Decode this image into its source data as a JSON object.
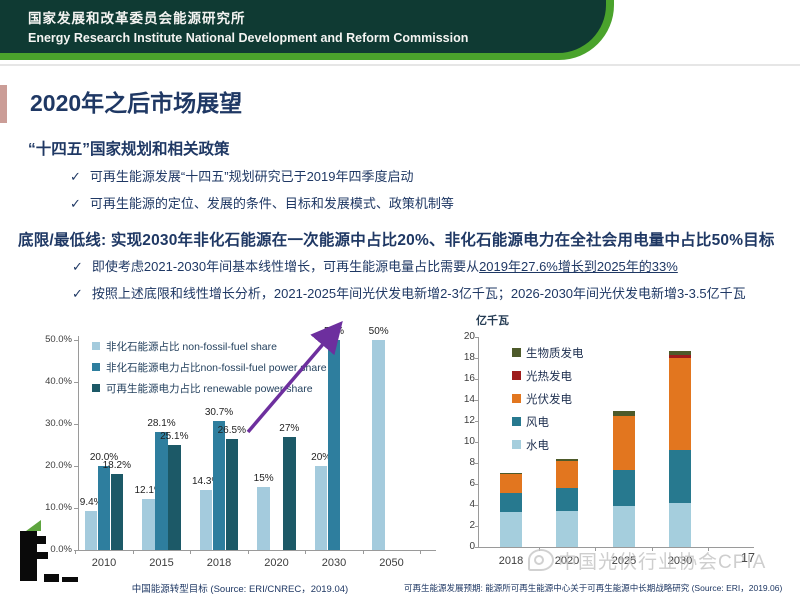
{
  "header": {
    "org_cn": "国家发展和改革委员会能源研究所",
    "org_en": "Energy Research Institute National Development and Reform Commission"
  },
  "slide": {
    "title": "2020年之后市场展望",
    "check_glyph": "✓",
    "section_policy": {
      "heading": "“十四五”国家规划和相关政策",
      "bullets": [
        "可再生能源发展“十四五”规划研究已于2019年四季度启动",
        "可再生能源的定位、发展的条件、目标和发展模式、政策机制等"
      ]
    },
    "section_target": {
      "heading": "底限/最低线: 实现2030年非化石能源在一次能源中占比20%、非化石能源电力在全社会用电量中占比50%目标",
      "bullet_growth_prefix": "即使考虑2021-2030年间基本线性增长，可再生能源电量占比需要从",
      "bullet_growth_underlined": "2019年27.6%增长到2025年的33%",
      "bullet_pv": "按照上述底限和线性增长分析，2021-2025年间光伏发电新增2-3亿千瓦；2026-2030年间光伏发电新增3-3.5亿千瓦"
    }
  },
  "chart_data": [
    {
      "type": "bar",
      "caption": "中国能源转型目标 (Source: ERI/CNREC，2019.04)",
      "categories": [
        "2010",
        "2015",
        "2018",
        "2020",
        "2030",
        "2050"
      ],
      "series": [
        {
          "name": "非化石能源占比 non-fossil-fuel share",
          "color": "#a4cbdd",
          "values": [
            9.4,
            12.1,
            14.3,
            15,
            20,
            50
          ],
          "labels": [
            "9.4%",
            "12.1%",
            "14.3%",
            "15%",
            "20%",
            "50%"
          ]
        },
        {
          "name": "非化石能源电力占比non-fossil-fuel power share",
          "color": "#2e7e9e",
          "values": [
            20.0,
            28.1,
            30.7,
            null,
            50,
            null
          ],
          "labels": [
            "20.0%",
            "28.1%",
            "30.7%",
            null,
            "50%",
            null
          ]
        },
        {
          "name": "可再生能源电力占比 renewable power share",
          "color": "#1c5967",
          "values": [
            18.2,
            25.1,
            26.5,
            27,
            null,
            null
          ],
          "labels": [
            "18.2%",
            "25.1%",
            "26.5%",
            "27%",
            null,
            null
          ]
        }
      ],
      "ylim": [
        0,
        50
      ],
      "yticks": [
        "0.0%",
        "10.0%",
        "20.0%",
        "30.0%",
        "40.0%",
        "50.0%"
      ],
      "legend_position": "top-left-inside",
      "grid": false,
      "annotation": "purple upward trend arrow pointing to 50% bar in 2030"
    },
    {
      "type": "bar-stacked",
      "unit_label": "亿千瓦",
      "caption": "可再生能源发展预期: 能源所可再生能源中心关于可再生能源中长期战略研究 (Source: ERI，2019.06)",
      "categories": [
        "2018",
        "2020",
        "2025",
        "2030"
      ],
      "series": [
        {
          "name": "水电",
          "color": "#a5cedd",
          "values": [
            3.3,
            3.4,
            3.9,
            4.2
          ]
        },
        {
          "name": "风电",
          "color": "#27798f",
          "values": [
            1.8,
            2.2,
            3.4,
            5.0
          ]
        },
        {
          "name": "光伏发电",
          "color": "#e2761f",
          "values": [
            1.9,
            2.6,
            5.2,
            8.8
          ]
        },
        {
          "name": "光热发电",
          "color": "#9e1b1b",
          "values": [
            0,
            0,
            0,
            0.25
          ]
        },
        {
          "name": "生物质发电",
          "color": "#4d5a2a",
          "values": [
            0.05,
            0.2,
            0.45,
            0.45
          ]
        }
      ],
      "legend_display_order": [
        "生物质发电",
        "光热发电",
        "光伏发电",
        "风电",
        "水电"
      ],
      "ylim": [
        0,
        20
      ],
      "yticks": [
        0,
        2,
        4,
        6,
        8,
        10,
        12,
        14,
        16,
        18,
        20
      ],
      "legend_position": "top-left-inside",
      "grid": false
    }
  ],
  "footer": {
    "watermark": "中国光伏行业协会CPIA",
    "page_number": "17"
  }
}
